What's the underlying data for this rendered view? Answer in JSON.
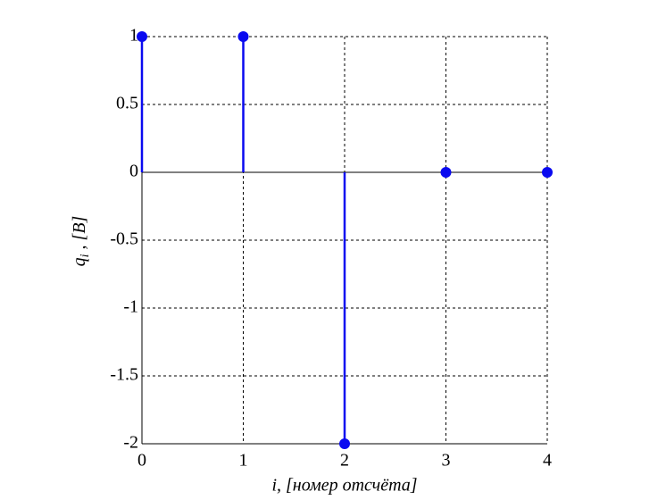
{
  "chart_data": {
    "type": "stem",
    "xlabel": "i, [номер отсчёта]",
    "ylabel": {
      "main": "q",
      "sub": "i",
      "rest": " , [B]"
    },
    "x": [
      0,
      1,
      2,
      3,
      4
    ],
    "values": [
      1,
      1,
      -2,
      0,
      0
    ],
    "color": "#0a0af0",
    "xlim": [
      0,
      4
    ],
    "xticks": [
      0,
      1,
      2,
      3,
      4
    ],
    "ylim": [
      -2,
      1
    ],
    "yticks": [
      -2,
      -1.5,
      -1,
      -0.5,
      0,
      0.5,
      1
    ],
    "grid": true
  }
}
